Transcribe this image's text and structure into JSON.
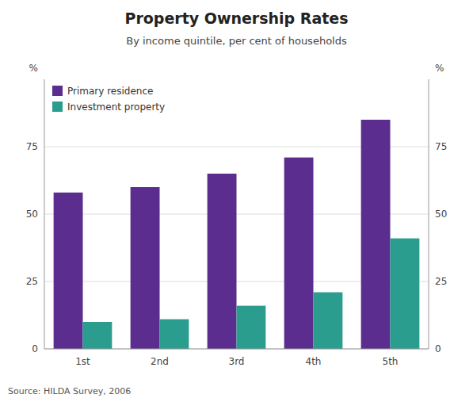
{
  "chart_data": {
    "type": "bar",
    "title": "Property Ownership Rates",
    "subtitle": "By income quintile, per cent of households",
    "annotations": [
      "Source: HILDA Survey, 2006"
    ],
    "categories": [
      "1st",
      "2nd",
      "3rd",
      "4th",
      "5th"
    ],
    "series": [
      {
        "name": "Primary residence",
        "color": "#5B2D8E",
        "values": [
          58,
          60,
          65,
          71,
          85
        ]
      },
      {
        "name": "Investment property",
        "color": "#2A9D8F",
        "values": [
          10,
          11,
          16,
          21,
          41
        ]
      }
    ],
    "ylim": [
      0,
      100
    ],
    "yticks": [
      0,
      25,
      50,
      75
    ],
    "y2lim": [
      0,
      100
    ],
    "y2ticks": [
      0,
      25,
      50,
      75
    ],
    "ylabel": "%",
    "y2label": "%",
    "grid": true,
    "legend": "upper left"
  }
}
